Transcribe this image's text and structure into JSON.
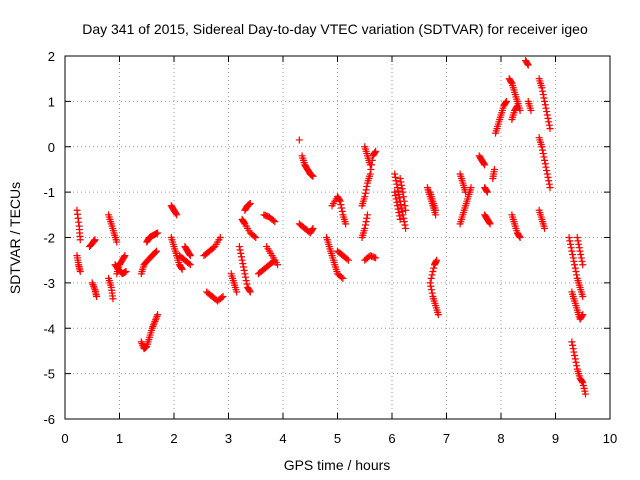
{
  "chart_data": {
    "type": "scatter",
    "title": "Day 341 of 2015, Sidereal Day-to-day VTEC variation (SDTVAR) for receiver igeo",
    "xlabel": "GPS time / hours",
    "ylabel": "SDTVAR / TECUs",
    "xlim": [
      0,
      10
    ],
    "ylim": [
      -6,
      2
    ],
    "xticks": [
      0,
      1,
      2,
      3,
      4,
      5,
      6,
      7,
      8,
      9,
      10
    ],
    "yticks": [
      -6,
      -5,
      -4,
      -3,
      -2,
      -1,
      0,
      1,
      2
    ],
    "grid": true,
    "marker": "+",
    "color": "#ff0000",
    "series": [
      {
        "name": "SDTVAR",
        "segments": [
          [
            [
              0.22,
              -1.4
            ],
            [
              0.26,
              -1.75
            ],
            [
              0.28,
              -2.05
            ]
          ],
          [
            [
              0.22,
              -2.4
            ],
            [
              0.25,
              -2.6
            ],
            [
              0.28,
              -2.75
            ]
          ],
          [
            [
              0.45,
              -2.2
            ],
            [
              0.52,
              -2.1
            ],
            [
              0.55,
              -2.05
            ]
          ],
          [
            [
              0.5,
              -3.0
            ],
            [
              0.55,
              -3.15
            ],
            [
              0.58,
              -3.3
            ]
          ],
          [
            [
              0.8,
              -1.5
            ],
            [
              0.85,
              -1.7
            ],
            [
              0.9,
              -1.9
            ],
            [
              0.95,
              -2.1
            ]
          ],
          [
            [
              0.8,
              -2.9
            ],
            [
              0.85,
              -3.1
            ],
            [
              0.88,
              -3.35
            ]
          ],
          [
            [
              0.92,
              -2.6
            ],
            [
              0.98,
              -2.7
            ],
            [
              1.05,
              -2.8
            ],
            [
              1.12,
              -2.75
            ]
          ],
          [
            [
              0.95,
              -2.8
            ],
            [
              1.0,
              -2.6
            ],
            [
              1.05,
              -2.5
            ],
            [
              1.1,
              -2.4
            ]
          ],
          [
            [
              1.4,
              -4.3
            ],
            [
              1.45,
              -4.45
            ],
            [
              1.5,
              -4.4
            ],
            [
              1.55,
              -4.2
            ],
            [
              1.6,
              -4.0
            ],
            [
              1.65,
              -3.85
            ],
            [
              1.7,
              -3.7
            ]
          ],
          [
            [
              1.4,
              -2.8
            ],
            [
              1.45,
              -2.6
            ],
            [
              1.52,
              -2.5
            ],
            [
              1.6,
              -2.4
            ],
            [
              1.68,
              -2.3
            ]
          ],
          [
            [
              1.5,
              -2.1
            ],
            [
              1.55,
              -2.0
            ],
            [
              1.62,
              -1.95
            ],
            [
              1.7,
              -1.9
            ]
          ],
          [
            [
              1.95,
              -1.3
            ],
            [
              2.0,
              -1.4
            ],
            [
              2.05,
              -1.5
            ]
          ],
          [
            [
              1.95,
              -2.0
            ],
            [
              2.0,
              -2.2
            ],
            [
              2.05,
              -2.4
            ],
            [
              2.1,
              -2.6
            ],
            [
              2.15,
              -2.7
            ]
          ],
          [
            [
              2.1,
              -2.4
            ],
            [
              2.2,
              -2.5
            ],
            [
              2.3,
              -2.6
            ]
          ],
          [
            [
              2.2,
              -2.2
            ],
            [
              2.25,
              -2.3
            ],
            [
              2.3,
              -2.4
            ]
          ],
          [
            [
              2.55,
              -2.4
            ],
            [
              2.65,
              -2.3
            ],
            [
              2.75,
              -2.2
            ],
            [
              2.85,
              -2.0
            ]
          ],
          [
            [
              2.6,
              -3.2
            ],
            [
              2.7,
              -3.3
            ],
            [
              2.8,
              -3.4
            ],
            [
              2.9,
              -3.3
            ]
          ],
          [
            [
              3.05,
              -2.8
            ],
            [
              3.1,
              -3.0
            ],
            [
              3.15,
              -3.2
            ]
          ],
          [
            [
              3.2,
              -2.2
            ],
            [
              3.25,
              -2.5
            ],
            [
              3.3,
              -2.8
            ],
            [
              3.35,
              -3.1
            ],
            [
              3.4,
              -3.2
            ]
          ],
          [
            [
              3.25,
              -1.6
            ],
            [
              3.3,
              -1.7
            ],
            [
              3.4,
              -1.9
            ],
            [
              3.5,
              -2.0
            ]
          ],
          [
            [
              3.3,
              -1.4
            ],
            [
              3.35,
              -1.3
            ],
            [
              3.4,
              -1.25
            ]
          ],
          [
            [
              3.55,
              -2.8
            ],
            [
              3.65,
              -2.7
            ],
            [
              3.75,
              -2.6
            ],
            [
              3.85,
              -2.5
            ]
          ],
          [
            [
              3.65,
              -1.5
            ],
            [
              3.75,
              -1.55
            ],
            [
              3.85,
              -1.65
            ]
          ],
          [
            [
              3.7,
              -2.2
            ],
            [
              3.8,
              -2.4
            ],
            [
              3.9,
              -2.6
            ]
          ],
          [
            [
              4.3,
              -1.7
            ],
            [
              4.4,
              -1.8
            ],
            [
              4.5,
              -1.9
            ],
            [
              4.55,
              -1.8
            ]
          ],
          [
            [
              4.35,
              -0.2
            ],
            [
              4.4,
              -0.4
            ],
            [
              4.45,
              -0.5
            ],
            [
              4.5,
              -0.6
            ],
            [
              4.55,
              -0.65
            ]
          ],
          [
            [
              4.3,
              0.15
            ]
          ],
          [
            [
              4.8,
              -2.0
            ],
            [
              4.85,
              -2.2
            ],
            [
              4.9,
              -2.4
            ],
            [
              4.95,
              -2.6
            ],
            [
              5.0,
              -2.8
            ],
            [
              5.1,
              -2.9
            ]
          ],
          [
            [
              4.9,
              -1.3
            ],
            [
              5.0,
              -1.1
            ],
            [
              5.05,
              -1.2
            ],
            [
              5.1,
              -1.5
            ],
            [
              5.15,
              -1.7
            ]
          ],
          [
            [
              5.0,
              -2.3
            ],
            [
              5.1,
              -2.4
            ],
            [
              5.2,
              -2.5
            ]
          ],
          [
            [
              5.45,
              -1.3
            ],
            [
              5.5,
              -1.1
            ],
            [
              5.55,
              -0.8
            ],
            [
              5.6,
              -0.6
            ],
            [
              5.65,
              -0.2
            ],
            [
              5.7,
              -0.1
            ]
          ],
          [
            [
              5.5,
              0.0
            ],
            [
              5.55,
              -0.2
            ],
            [
              5.6,
              -0.4
            ]
          ],
          [
            [
              5.45,
              -2.0
            ],
            [
              5.5,
              -1.8
            ],
            [
              5.55,
              -1.5
            ]
          ],
          [
            [
              5.5,
              -2.5
            ],
            [
              5.6,
              -2.4
            ],
            [
              5.7,
              -2.45
            ]
          ],
          [
            [
              6.05,
              -0.6
            ],
            [
              6.1,
              -0.9
            ],
            [
              6.15,
              -1.2
            ],
            [
              6.2,
              -1.5
            ],
            [
              6.25,
              -1.8
            ]
          ],
          [
            [
              6.05,
              -1.0
            ],
            [
              6.1,
              -1.3
            ],
            [
              6.15,
              -1.6
            ]
          ],
          [
            [
              6.15,
              -0.7
            ],
            [
              6.2,
              -1.0
            ],
            [
              6.25,
              -1.4
            ]
          ],
          [
            [
              6.65,
              -0.9
            ],
            [
              6.7,
              -1.1
            ],
            [
              6.75,
              -1.3
            ],
            [
              6.8,
              -1.5
            ]
          ],
          [
            [
              6.7,
              -1.0
            ],
            [
              6.75,
              -1.2
            ],
            [
              6.8,
              -1.4
            ]
          ],
          [
            [
              6.7,
              -3.0
            ],
            [
              6.75,
              -3.3
            ],
            [
              6.8,
              -3.5
            ],
            [
              6.85,
              -3.7
            ]
          ],
          [
            [
              6.72,
              -2.9
            ],
            [
              6.78,
              -2.6
            ],
            [
              6.82,
              -2.5
            ]
          ],
          [
            [
              7.25,
              -1.7
            ],
            [
              7.3,
              -1.5
            ],
            [
              7.35,
              -1.3
            ],
            [
              7.4,
              -1.1
            ],
            [
              7.45,
              -0.9
            ]
          ],
          [
            [
              7.25,
              -0.6
            ],
            [
              7.3,
              -0.8
            ],
            [
              7.35,
              -1.0
            ]
          ],
          [
            [
              7.7,
              -1.5
            ],
            [
              7.75,
              -1.6
            ],
            [
              7.8,
              -1.7
            ]
          ],
          [
            [
              7.6,
              -0.2
            ],
            [
              7.65,
              -0.3
            ],
            [
              7.7,
              -0.4
            ]
          ],
          [
            [
              7.7,
              -0.9
            ],
            [
              7.75,
              -1.0
            ]
          ],
          [
            [
              7.85,
              -0.7
            ],
            [
              7.88,
              -0.5
            ]
          ],
          [
            [
              7.9,
              0.3
            ],
            [
              7.95,
              0.5
            ],
            [
              8.0,
              0.7
            ],
            [
              8.05,
              0.9
            ],
            [
              8.1,
              1.0
            ]
          ],
          [
            [
              8.15,
              1.5
            ],
            [
              8.2,
              1.4
            ],
            [
              8.25,
              1.2
            ],
            [
              8.3,
              1.0
            ],
            [
              8.35,
              0.8
            ]
          ],
          [
            [
              8.2,
              0.6
            ],
            [
              8.25,
              0.8
            ],
            [
              8.3,
              0.9
            ]
          ],
          [
            [
              8.2,
              -1.5
            ],
            [
              8.25,
              -1.7
            ],
            [
              8.3,
              -1.9
            ],
            [
              8.35,
              -2.0
            ]
          ],
          [
            [
              8.45,
              1.9
            ],
            [
              8.5,
              1.8
            ]
          ],
          [
            [
              8.5,
              1.0
            ],
            [
              8.55,
              0.8
            ]
          ],
          [
            [
              8.7,
              1.5
            ],
            [
              8.75,
              1.3
            ],
            [
              8.8,
              1.0
            ],
            [
              8.85,
              0.7
            ],
            [
              8.9,
              0.4
            ]
          ],
          [
            [
              8.7,
              0.2
            ],
            [
              8.75,
              0.0
            ],
            [
              8.8,
              -0.3
            ],
            [
              8.85,
              -0.6
            ],
            [
              8.9,
              -0.9
            ]
          ],
          [
            [
              8.7,
              -1.4
            ],
            [
              8.75,
              -1.6
            ],
            [
              8.8,
              -1.8
            ]
          ],
          [
            [
              9.25,
              -2.0
            ],
            [
              9.3,
              -2.3
            ],
            [
              9.35,
              -2.6
            ],
            [
              9.4,
              -2.9
            ],
            [
              9.45,
              -3.1
            ],
            [
              9.5,
              -3.3
            ]
          ],
          [
            [
              9.3,
              -3.2
            ],
            [
              9.35,
              -3.4
            ],
            [
              9.4,
              -3.6
            ],
            [
              9.45,
              -3.8
            ],
            [
              9.5,
              -3.7
            ]
          ],
          [
            [
              9.3,
              -4.3
            ],
            [
              9.35,
              -4.6
            ],
            [
              9.4,
              -4.9
            ],
            [
              9.45,
              -5.1
            ],
            [
              9.5,
              -5.2
            ],
            [
              9.55,
              -5.45
            ]
          ],
          [
            [
              9.4,
              -2.0
            ],
            [
              9.45,
              -2.3
            ],
            [
              9.5,
              -2.6
            ]
          ]
        ]
      }
    ]
  }
}
